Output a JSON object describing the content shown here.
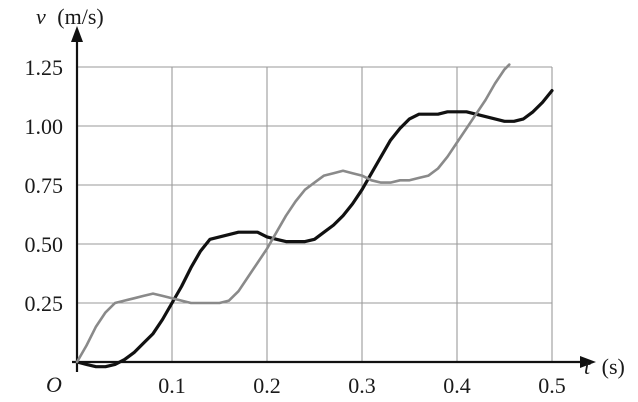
{
  "chart_data": {
    "type": "line",
    "title": "",
    "xlabel": {
      "var": "t",
      "unit": "(s)"
    },
    "ylabel": {
      "var": "v",
      "unit": "(m/s)"
    },
    "origin_label": "O",
    "xlim": [
      0,
      0.5
    ],
    "ylim": [
      0,
      1.25
    ],
    "x_ticks": [
      {
        "value": 0.1,
        "label": "0.1"
      },
      {
        "value": 0.2,
        "label": "0.2"
      },
      {
        "value": 0.3,
        "label": "0.3"
      },
      {
        "value": 0.4,
        "label": "0.4"
      },
      {
        "value": 0.5,
        "label": "0.5"
      }
    ],
    "y_ticks": [
      {
        "value": 0.25,
        "label": "0.25"
      },
      {
        "value": 0.5,
        "label": "0.50"
      },
      {
        "value": 0.75,
        "label": "0.75"
      },
      {
        "value": 1.0,
        "label": "1.00"
      },
      {
        "value": 1.25,
        "label": "1.25"
      }
    ],
    "grid": true,
    "legend": "none",
    "series": [
      {
        "color": "#111111",
        "x": [
          0,
          0.01,
          0.02,
          0.03,
          0.04,
          0.05,
          0.06,
          0.07,
          0.08,
          0.09,
          0.1,
          0.11,
          0.12,
          0.13,
          0.14,
          0.15,
          0.16,
          0.17,
          0.18,
          0.19,
          0.2,
          0.21,
          0.22,
          0.23,
          0.24,
          0.25,
          0.26,
          0.27,
          0.28,
          0.29,
          0.3,
          0.31,
          0.32,
          0.33,
          0.34,
          0.35,
          0.36,
          0.37,
          0.38,
          0.39,
          0.4,
          0.41,
          0.42,
          0.43,
          0.44,
          0.45,
          0.46,
          0.47,
          0.48,
          0.49,
          0.5
        ],
        "y": [
          0.0,
          -0.01,
          -0.02,
          -0.02,
          -0.01,
          0.01,
          0.04,
          0.08,
          0.12,
          0.18,
          0.25,
          0.32,
          0.4,
          0.47,
          0.52,
          0.53,
          0.54,
          0.55,
          0.55,
          0.55,
          0.53,
          0.52,
          0.51,
          0.51,
          0.51,
          0.52,
          0.55,
          0.58,
          0.62,
          0.67,
          0.73,
          0.8,
          0.87,
          0.94,
          0.99,
          1.03,
          1.05,
          1.05,
          1.05,
          1.06,
          1.06,
          1.06,
          1.05,
          1.04,
          1.03,
          1.02,
          1.02,
          1.03,
          1.06,
          1.1,
          1.15
        ]
      },
      {
        "color": "#8a8a8a",
        "x": [
          0,
          0.01,
          0.02,
          0.03,
          0.04,
          0.05,
          0.06,
          0.07,
          0.08,
          0.09,
          0.1,
          0.11,
          0.12,
          0.13,
          0.14,
          0.15,
          0.16,
          0.17,
          0.18,
          0.19,
          0.2,
          0.21,
          0.22,
          0.23,
          0.24,
          0.25,
          0.26,
          0.27,
          0.28,
          0.29,
          0.3,
          0.31,
          0.32,
          0.33,
          0.34,
          0.35,
          0.36,
          0.37,
          0.38,
          0.39,
          0.4,
          0.41,
          0.42,
          0.43,
          0.44,
          0.45,
          0.455
        ],
        "y": [
          0.0,
          0.07,
          0.15,
          0.21,
          0.25,
          0.26,
          0.27,
          0.28,
          0.29,
          0.28,
          0.27,
          0.26,
          0.25,
          0.25,
          0.25,
          0.25,
          0.26,
          0.3,
          0.36,
          0.42,
          0.48,
          0.55,
          0.62,
          0.68,
          0.73,
          0.76,
          0.79,
          0.8,
          0.81,
          0.8,
          0.79,
          0.77,
          0.76,
          0.76,
          0.77,
          0.77,
          0.78,
          0.79,
          0.82,
          0.87,
          0.93,
          0.99,
          1.05,
          1.11,
          1.18,
          1.24,
          1.26
        ]
      }
    ]
  }
}
